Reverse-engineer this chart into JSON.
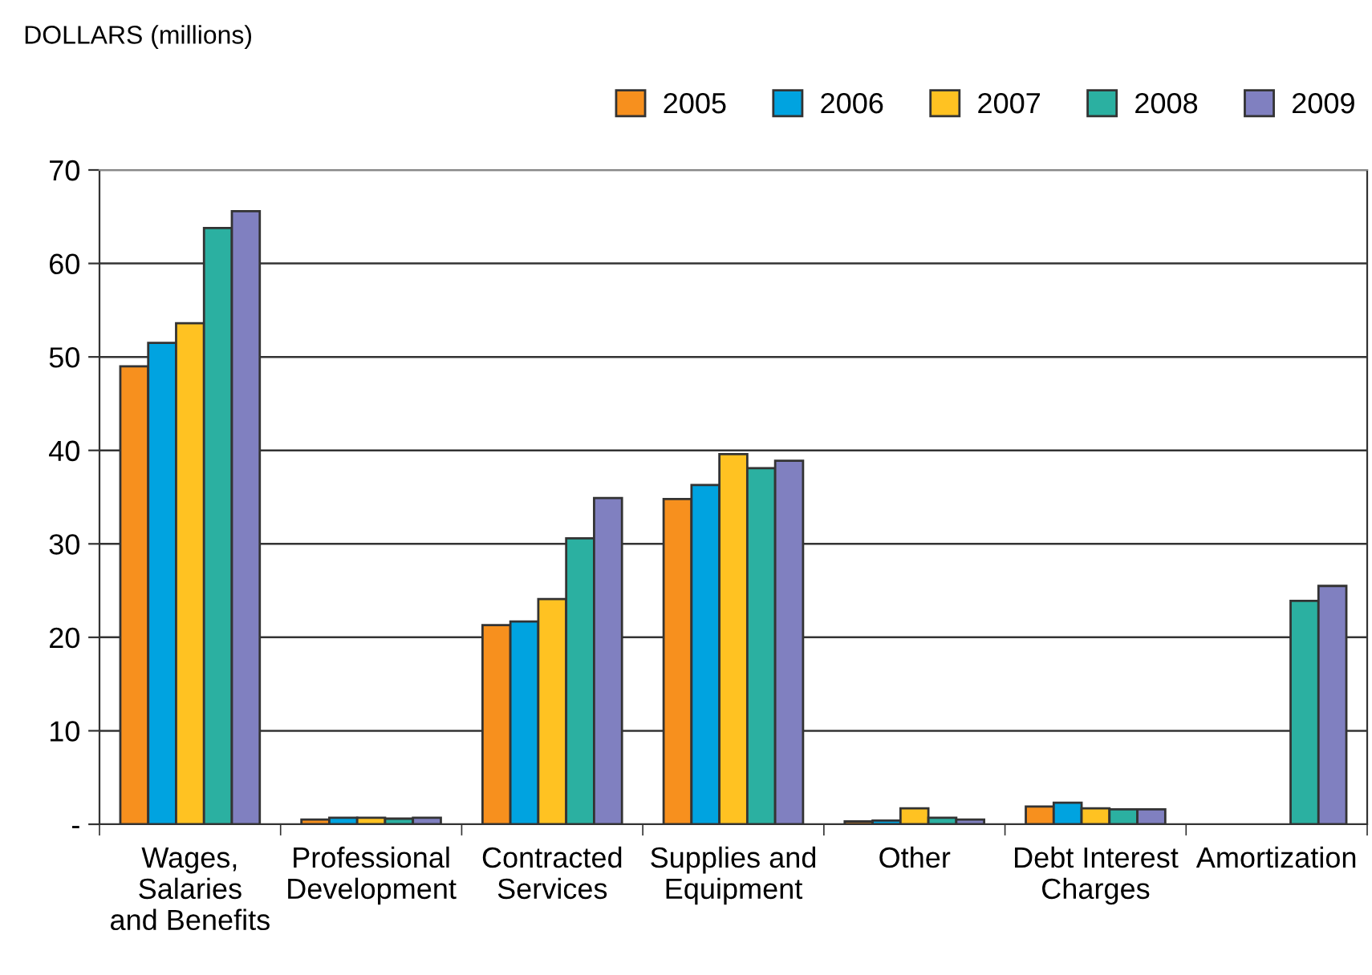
{
  "chart_data": {
    "type": "bar",
    "ylabel": "DOLLARS (millions)",
    "categories": [
      "Wages,\nSalaries\nand Benefits",
      "Professional\nDevelopment",
      "Contracted\nServices",
      "Supplies and\nEquipment",
      "Other",
      "Debt Interest\nCharges",
      "Amortization"
    ],
    "series": [
      {
        "name": "2005",
        "color": "#f7901e",
        "values": [
          49.0,
          0.5,
          21.3,
          34.8,
          0.3,
          1.9,
          null
        ]
      },
      {
        "name": "2006",
        "color": "#00a3e0",
        "values": [
          51.5,
          0.7,
          21.7,
          36.3,
          0.4,
          2.3,
          null
        ]
      },
      {
        "name": "2007",
        "color": "#ffc222",
        "values": [
          53.6,
          0.7,
          24.1,
          39.6,
          1.7,
          1.7,
          null
        ]
      },
      {
        "name": "2008",
        "color": "#2bb0a1",
        "values": [
          63.8,
          0.6,
          30.6,
          38.1,
          0.7,
          1.6,
          23.9
        ]
      },
      {
        "name": "2009",
        "color": "#8080c0",
        "values": [
          65.6,
          0.7,
          34.9,
          38.9,
          0.5,
          1.6,
          25.5
        ]
      }
    ],
    "ylim": [
      0,
      70
    ],
    "yticks": [
      {
        "value": 0,
        "label": "-"
      },
      10,
      20,
      30,
      40,
      50,
      60,
      70
    ],
    "grid": "y",
    "legend": "top right"
  }
}
